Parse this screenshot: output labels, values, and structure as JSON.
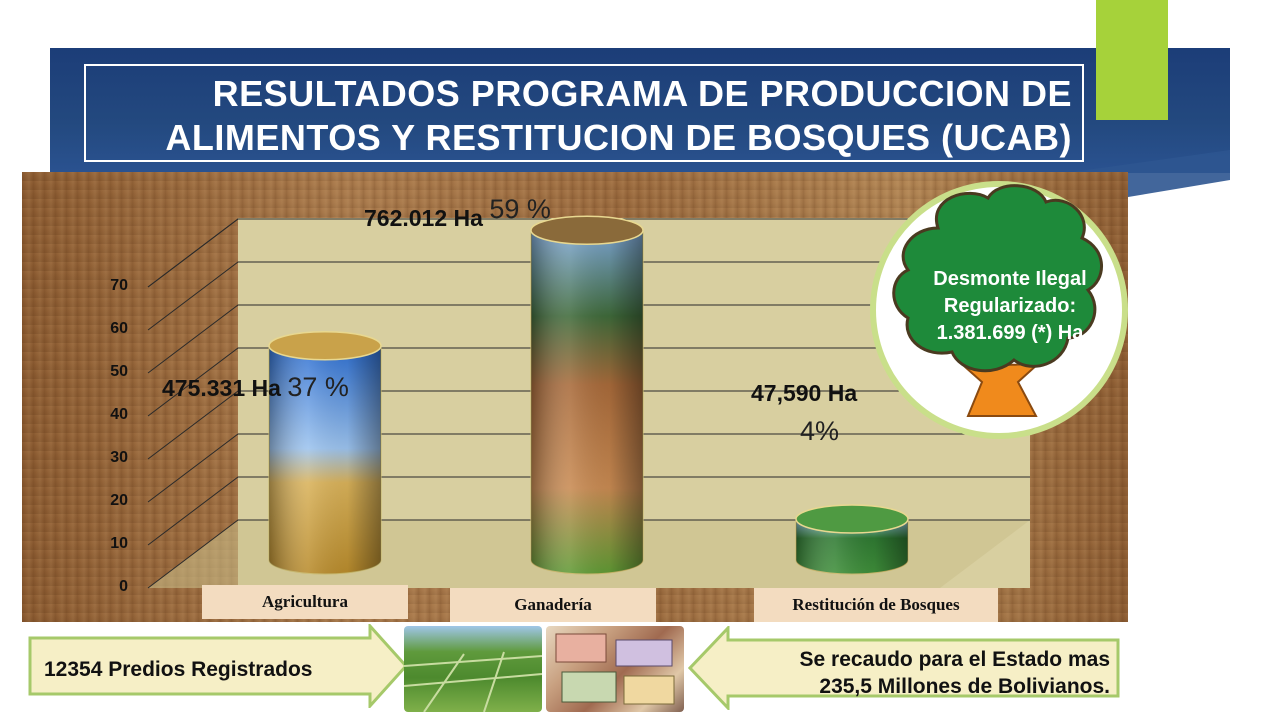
{
  "slide": {
    "title_line1": "RESULTADOS PROGRAMA DE PRODUCCION DE",
    "title_line2": "ALIMENTOS Y RESTITUCION DE BOSQUES (UCAB)"
  },
  "chart_data": {
    "type": "bar",
    "categories": [
      "Agricultura",
      "Ganadería",
      "Restitución de Bosques"
    ],
    "values": [
      37,
      59,
      4
    ],
    "data_labels": [
      "475.331 Ha",
      "762.012 Ha",
      "47,590 Ha"
    ],
    "percent_labels": [
      "37 %",
      "59 %",
      "4%"
    ],
    "yticks": [
      "0",
      "10",
      "20",
      "30",
      "40",
      "50",
      "60",
      "70"
    ],
    "ylim": [
      0,
      70
    ],
    "grid": true,
    "style": "3d-cylinder"
  },
  "callout": {
    "line1": "Desmonte Ilegal",
    "line2": "Regularizado:",
    "line3": "1.381.699 (*) Ha"
  },
  "bottom": {
    "left_text": "12354 Predios Registrados",
    "right_line1": "Se recaudo para el Estado mas",
    "right_line2": "235,5 Millones de Bolivianos."
  },
  "colors": {
    "banner": "#23497f",
    "accent": "#a6d23a",
    "tree": "#1e8a3a",
    "arrow_fill": "#f6efc6",
    "arrow_stroke": "#a6c96a"
  }
}
